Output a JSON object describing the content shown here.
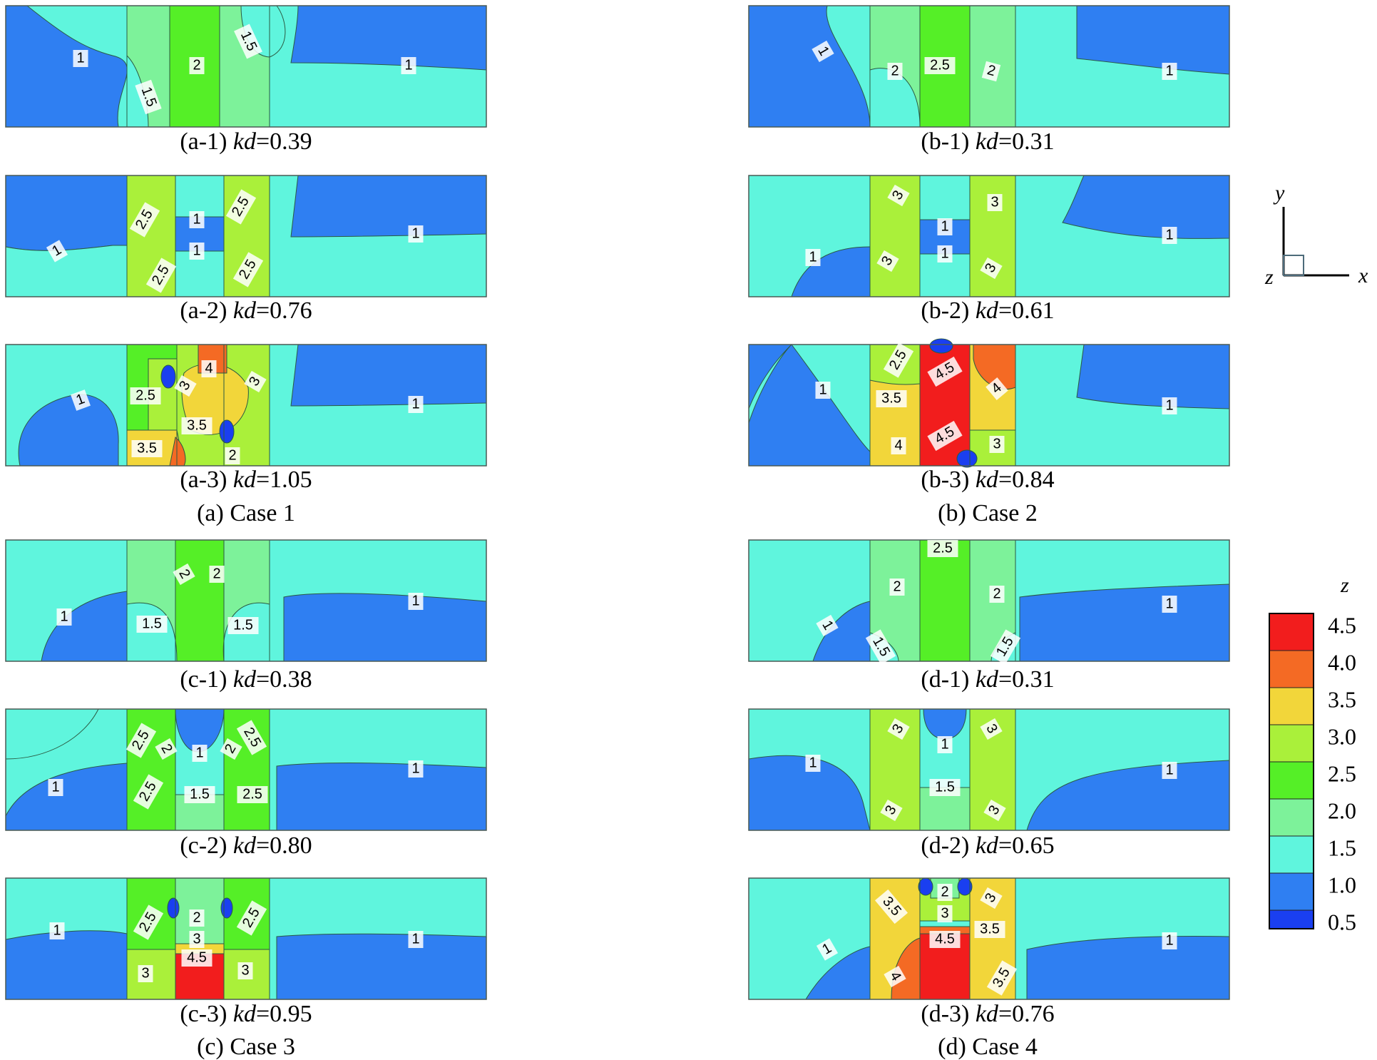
{
  "colors": {
    "c05": "#1a3ff0",
    "c10": "#2f7ff2",
    "c15": "#5ff5dd",
    "c20": "#7df29a",
    "c25": "#55ef27",
    "c30": "#aaf03a",
    "c35": "#f2d63a",
    "c40": "#f46a24",
    "c45": "#f21d1d"
  },
  "legend": {
    "title": "z",
    "levels": [
      "4.5",
      "4.0",
      "3.5",
      "3.0",
      "2.5",
      "2.0",
      "1.5",
      "1.0",
      "0.5"
    ]
  },
  "axes": {
    "y": "y",
    "x": "x",
    "z": "z"
  },
  "panels": [
    {
      "id": "a1",
      "case": "a-1",
      "kd": "0.39",
      "labels": [
        "1",
        "1.5",
        "2",
        "1.5",
        "1"
      ]
    },
    {
      "id": "a2",
      "case": "a-2",
      "kd": "0.76",
      "labels": [
        "1",
        "2.5",
        "2.5",
        "1",
        "1",
        "2.5",
        "2.5",
        "1"
      ]
    },
    {
      "id": "a3",
      "case": "a-3",
      "kd": "1.05",
      "labels": [
        "1",
        "2.5",
        "3",
        "4",
        "3.5",
        "3.5",
        "2",
        "3",
        "1"
      ]
    },
    {
      "id": "b1",
      "case": "b-1",
      "kd": "0.31",
      "labels": [
        "1",
        "2",
        "2.5",
        "2",
        "1"
      ]
    },
    {
      "id": "b2",
      "case": "b-2",
      "kd": "0.61",
      "labels": [
        "1",
        "3",
        "3",
        "1",
        "1",
        "3",
        "3",
        "1"
      ]
    },
    {
      "id": "b3",
      "case": "b-3",
      "kd": "0.84",
      "labels": [
        "1",
        "2.5",
        "3.5",
        "4",
        "4.5",
        "4.5",
        "4",
        "3",
        "1"
      ]
    },
    {
      "id": "c1",
      "case": "c-1",
      "kd": "0.38",
      "labels": [
        "1",
        "1.5",
        "2",
        "2",
        "1.5",
        "1"
      ]
    },
    {
      "id": "c2",
      "case": "c-2",
      "kd": "0.80",
      "labels": [
        "1",
        "2.5",
        "2",
        "2.5",
        "1",
        "1.5",
        "2",
        "2.5",
        "2.5",
        "1"
      ]
    },
    {
      "id": "c3",
      "case": "c-3",
      "kd": "0.95",
      "labels": [
        "1",
        "2.5",
        "3",
        "2",
        "3",
        "4.5",
        "2.5",
        "3",
        "1"
      ]
    },
    {
      "id": "d1",
      "case": "d-1",
      "kd": "0.31",
      "labels": [
        "1",
        "1.5",
        "2",
        "2.5",
        "2",
        "1.5",
        "1"
      ]
    },
    {
      "id": "d2",
      "case": "d-2",
      "kd": "0.65",
      "labels": [
        "1",
        "3",
        "3",
        "1",
        "1.5",
        "3",
        "3",
        "1"
      ]
    },
    {
      "id": "d3",
      "case": "d-3",
      "kd": "0.76",
      "labels": [
        "1",
        "3.5",
        "4",
        "2",
        "3",
        "4.5",
        "3.5",
        "3",
        "3.5",
        "1"
      ]
    }
  ],
  "groups": [
    {
      "letter": "(a)",
      "name": "Case 1"
    },
    {
      "letter": "(b)",
      "name": "Case 2"
    },
    {
      "letter": "(c)",
      "name": "Case 3"
    },
    {
      "letter": "(d)",
      "name": "Case 4"
    }
  ],
  "caption_parts": {
    "kd_symbol": "kd",
    "equals": "="
  }
}
